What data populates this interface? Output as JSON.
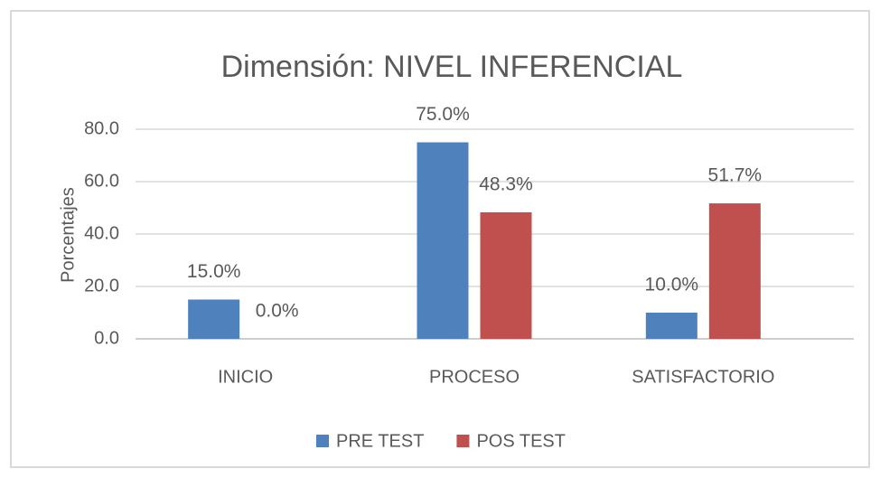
{
  "chart_data": {
    "type": "bar",
    "title": "Dimensión: NIVEL INFERENCIAL",
    "y_label": "Porcentajes",
    "categories": [
      "INICIO",
      "PROCESO",
      "SATISFACTORIO"
    ],
    "series": [
      {
        "name": "PRE TEST",
        "color": "#4f81bd",
        "values": [
          15.0,
          75.0,
          10.0
        ],
        "value_labels": [
          "15.0%",
          "75.0%",
          "10.0%"
        ]
      },
      {
        "name": "POS TEST",
        "color": "#c0504d",
        "values": [
          0.0,
          48.3,
          51.7
        ],
        "value_labels": [
          "0.0%",
          "48.3%",
          "51.7%"
        ]
      }
    ],
    "ylim": [
      0,
      80
    ],
    "yticks": [
      {
        "value": 0,
        "label": "0.0"
      },
      {
        "value": 20,
        "label": "20.0"
      },
      {
        "value": 40,
        "label": "40.0"
      },
      {
        "value": 60,
        "label": "60.0"
      },
      {
        "value": 80,
        "label": "80.0"
      }
    ],
    "grid": true,
    "legend": "bottom"
  }
}
